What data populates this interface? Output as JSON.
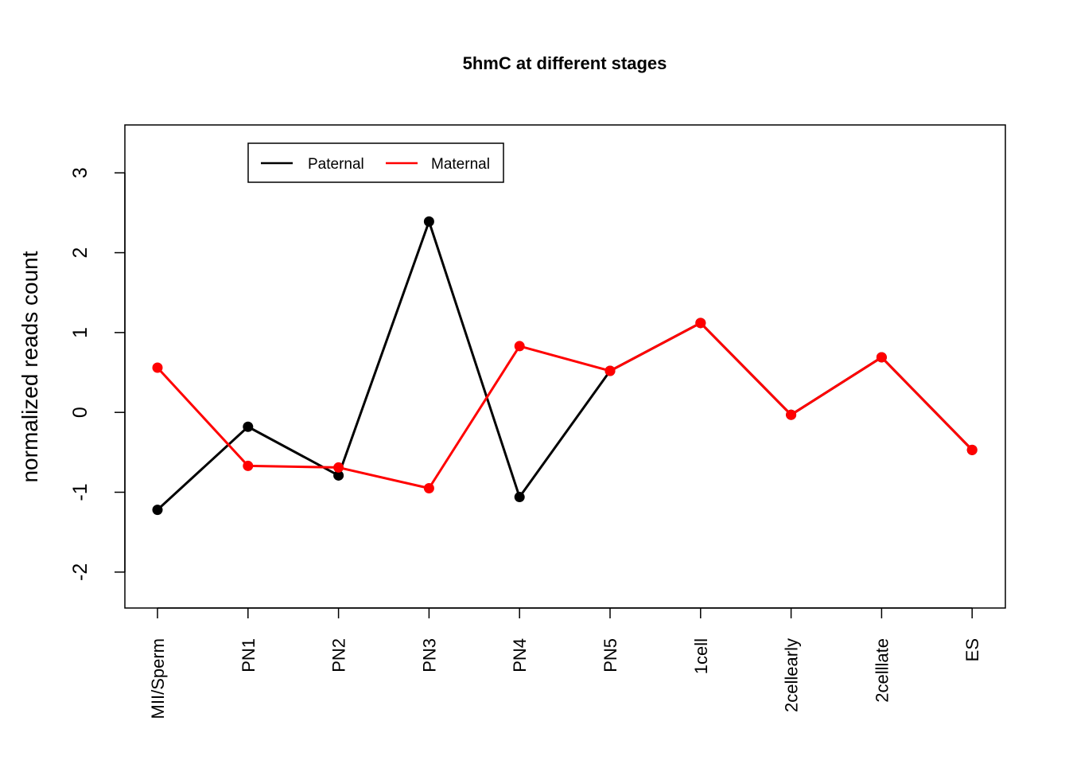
{
  "chart_data": {
    "type": "line",
    "title": "5hmC at different stages",
    "xlabel": "",
    "ylabel": "normalized reads count",
    "categories": [
      "MII/Sperm",
      "PN1",
      "PN2",
      "PN3",
      "PN4",
      "PN5",
      "1cell",
      "2cellearly",
      "2celllate",
      "ES"
    ],
    "yticks": [
      "-2",
      "-1",
      "0",
      "1",
      "2",
      "3"
    ],
    "ylim": [
      -2.45,
      3.6
    ],
    "grid": false,
    "legend_position": "top-left",
    "series": [
      {
        "name": "Paternal",
        "color": "#000000",
        "values": [
          -1.22,
          -0.18,
          -0.79,
          2.39,
          -1.06,
          0.52,
          1.12,
          -0.03,
          0.69,
          -0.47
        ]
      },
      {
        "name": "Maternal",
        "color": "#ff0000",
        "values": [
          0.56,
          -0.67,
          -0.69,
          -0.95,
          0.83,
          0.52,
          1.12,
          -0.03,
          0.69,
          -0.47
        ]
      }
    ]
  }
}
